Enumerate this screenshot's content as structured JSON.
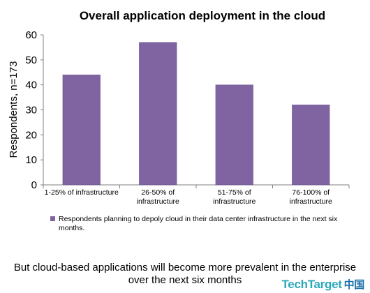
{
  "colors": {
    "bar": "#8064a2",
    "bar_edge": "#6a5090",
    "axis": "#7f7f7f",
    "logo": "#2aa8b8"
  },
  "chart_data": {
    "type": "bar",
    "title": "Overall application deployment in the cloud",
    "ylabel": "Respondents, n=173",
    "xlabel": "",
    "ylim": [
      0,
      60
    ],
    "yticks": [
      0,
      10,
      20,
      30,
      40,
      50,
      60
    ],
    "categories": [
      [
        "1-25% of infrastructure"
      ],
      [
        "26-50% of",
        "infrastructure"
      ],
      [
        "51-75% of",
        "infrastructure"
      ],
      [
        "76-100% of",
        "infrastructure"
      ]
    ],
    "series": [
      {
        "name": "Respondents planning to depoly cloud in their data center infrastructure in the next six months.",
        "values": [
          44,
          57,
          40,
          32
        ]
      }
    ],
    "grid": false,
    "legend_position": "bottom"
  },
  "legend_lines": [
    "Respondents planning to depoly cloud in their data center infrastructure in the next six",
    "months."
  ],
  "caption_lines": [
    "But cloud-based applications will become more prevalent in the enterprise",
    "over the next six months"
  ],
  "logo": {
    "name": "TechTarget",
    "suffix": "中国"
  }
}
